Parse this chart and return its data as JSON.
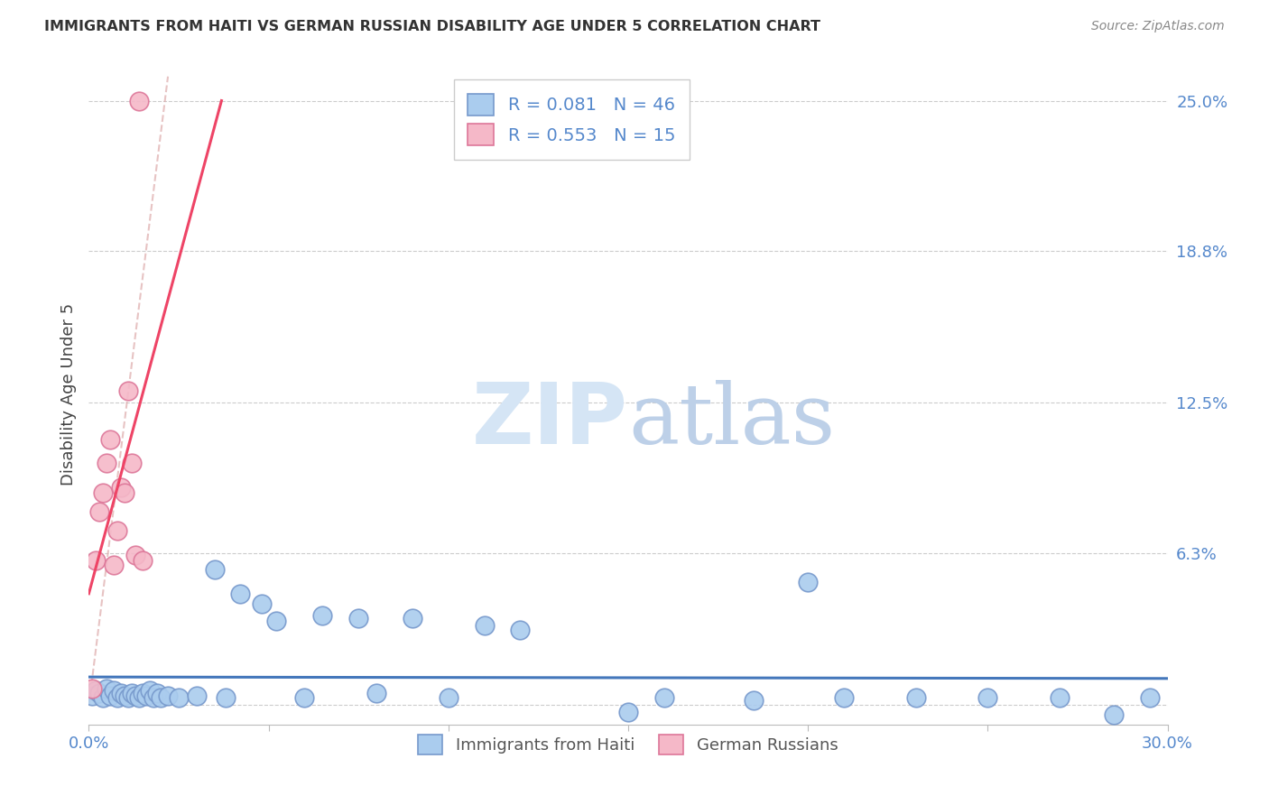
{
  "title": "IMMIGRANTS FROM HAITI VS GERMAN RUSSIAN DISABILITY AGE UNDER 5 CORRELATION CHART",
  "source": "Source: ZipAtlas.com",
  "ylabel": "Disability Age Under 5",
  "xmin": 0.0,
  "xmax": 0.3,
  "ymin": -0.008,
  "ymax": 0.265,
  "yticks": [
    0.0,
    0.063,
    0.125,
    0.188,
    0.25
  ],
  "ytick_labels": [
    "",
    "6.3%",
    "12.5%",
    "18.8%",
    "25.0%"
  ],
  "xticks": [
    0.0,
    0.05,
    0.1,
    0.15,
    0.2,
    0.25,
    0.3
  ],
  "xtick_labels": [
    "0.0%",
    "",
    "",
    "",
    "",
    "",
    "30.0%"
  ],
  "background_color": "#ffffff",
  "grid_color": "#cccccc",
  "haiti_color": "#aaccee",
  "haiti_edge_color": "#7799cc",
  "german_color": "#f5b8c8",
  "german_edge_color": "#dd7799",
  "haiti_line_color": "#4477bb",
  "german_line_color": "#ee4466",
  "ref_line_color": "#cccccc",
  "legend_haiti_R": "R = 0.081",
  "legend_haiti_N": "N = 46",
  "legend_german_R": "R = 0.553",
  "legend_german_N": "N = 15",
  "tick_label_color": "#5588cc",
  "watermark_zip": "ZIP",
  "watermark_atlas": "atlas",
  "watermark_color_zip": "#d0dff0",
  "watermark_color_atlas": "#c0d8e8",
  "haiti_x": [
    0.001,
    0.002,
    0.003,
    0.004,
    0.005,
    0.006,
    0.007,
    0.008,
    0.009,
    0.01,
    0.011,
    0.012,
    0.013,
    0.014,
    0.015,
    0.016,
    0.017,
    0.018,
    0.019,
    0.02,
    0.022,
    0.025,
    0.03,
    0.035,
    0.038,
    0.042,
    0.048,
    0.052,
    0.06,
    0.065,
    0.075,
    0.08,
    0.09,
    0.1,
    0.11,
    0.12,
    0.15,
    0.16,
    0.185,
    0.2,
    0.21,
    0.23,
    0.25,
    0.27,
    0.285,
    0.295
  ],
  "haiti_y": [
    0.004,
    0.006,
    0.005,
    0.003,
    0.007,
    0.004,
    0.006,
    0.003,
    0.005,
    0.004,
    0.003,
    0.005,
    0.004,
    0.003,
    0.005,
    0.004,
    0.006,
    0.003,
    0.005,
    0.003,
    0.004,
    0.003,
    0.004,
    0.056,
    0.003,
    0.046,
    0.042,
    0.035,
    0.003,
    0.037,
    0.036,
    0.005,
    0.036,
    0.003,
    0.033,
    0.031,
    -0.003,
    0.003,
    0.002,
    0.051,
    0.003,
    0.003,
    0.003,
    0.003,
    -0.004,
    0.003
  ],
  "german_x": [
    0.001,
    0.002,
    0.003,
    0.004,
    0.005,
    0.006,
    0.007,
    0.008,
    0.009,
    0.01,
    0.011,
    0.012,
    0.013,
    0.014,
    0.015
  ],
  "german_y": [
    0.007,
    0.06,
    0.08,
    0.088,
    0.1,
    0.11,
    0.058,
    0.072,
    0.09,
    0.088,
    0.13,
    0.1,
    0.062,
    0.25,
    0.06
  ]
}
